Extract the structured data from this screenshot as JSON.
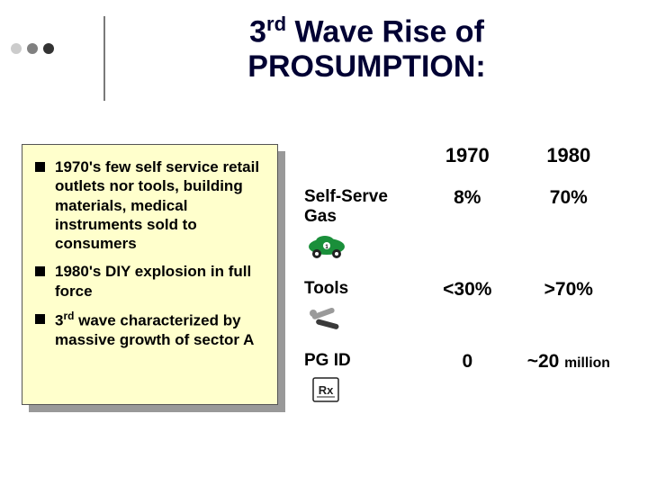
{
  "title_html": "3<sup>rd</sup> Wave Rise of PROSUMPTION:",
  "accent_dot_colors": [
    "#cccccc",
    "#808080",
    "#333333"
  ],
  "body_box": {
    "background": "#ffffcc",
    "shadow": "#999999",
    "bullets": [
      "1970's few self service retail outlets nor tools, building materials, medical instruments sold to consumers",
      "1980's DIY explosion in full force",
      "3<sup>rd</sup> wave characterized by massive growth of sector A"
    ]
  },
  "table": {
    "columns": [
      "",
      "1970",
      "1980"
    ],
    "rows": [
      {
        "label": "Self-Serve Gas",
        "icon": "car",
        "c1": "8%",
        "c2": "70%"
      },
      {
        "label": "Tools",
        "icon": "tools",
        "c1": "<30%",
        "c2": ">70%"
      },
      {
        "label": "PG ID",
        "icon": "rx",
        "c1": "0",
        "c2_html": "~20 <span class=\"small-unit\">million</span>"
      }
    ]
  },
  "icons": {
    "car": {
      "body": "#1a8f3a",
      "wheel": "#222222",
      "accent": "#ffffff"
    },
    "tools": {
      "metal": "#9a9a9a",
      "handle": "#3a3a3a"
    },
    "rx": {
      "pad": "#ffffff",
      "border": "#222222",
      "text": "#222222"
    }
  }
}
